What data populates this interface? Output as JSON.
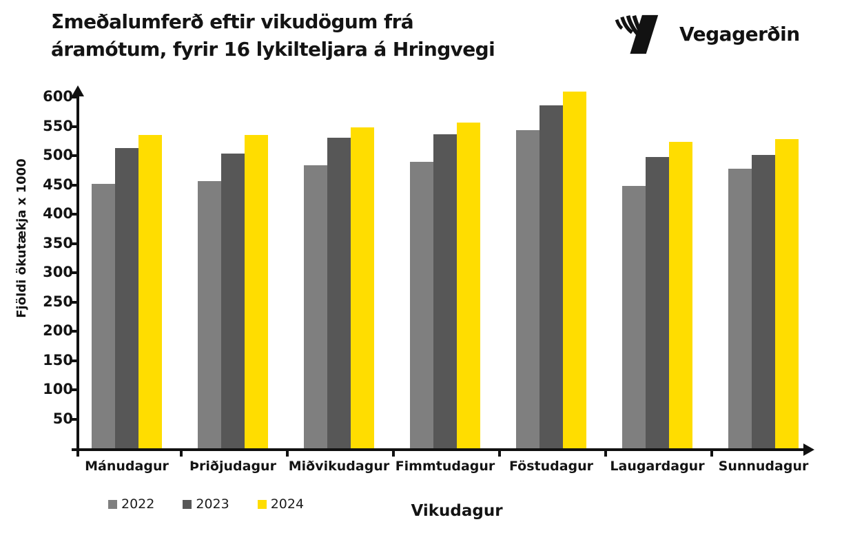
{
  "header": {
    "title_line1": "Σmeðalumferð eftir vikudögum frá",
    "title_line2": "áramótum, fyrir 16 lykilteljara á Hringvegi",
    "logo_text": "Vegagerðin"
  },
  "chart_data": {
    "type": "bar",
    "title": "Σmeðalumferð eftir vikudögum frá áramótum, fyrir 16 lykilteljara á Hringvegi",
    "xlabel": "Vikudagur",
    "ylabel": "Fjöldi ökutækja x 1000",
    "categories": [
      "Mánudagur",
      "Þriðjudagur",
      "Miðvikudagur",
      "Fimmtudagur",
      "Föstudagur",
      "Laugardagur",
      "Sunnudagur"
    ],
    "series": [
      {
        "name": "2022",
        "color": "#7F7F7F",
        "values": [
          452,
          457,
          484,
          490,
          544,
          448,
          478
        ]
      },
      {
        "name": "2023",
        "color": "#575757",
        "values": [
          513,
          504,
          531,
          536,
          586,
          498,
          501
        ]
      },
      {
        "name": "2024",
        "color": "#FFDD00",
        "values": [
          535,
          535,
          548,
          556,
          609,
          524,
          528
        ]
      }
    ],
    "ylim": [
      0,
      620
    ],
    "yticks": [
      50,
      100,
      150,
      200,
      250,
      300,
      350,
      400,
      450,
      500,
      550,
      600
    ],
    "grid": false,
    "legend_position": "bottom-left",
    "axis_color": "#111111"
  }
}
